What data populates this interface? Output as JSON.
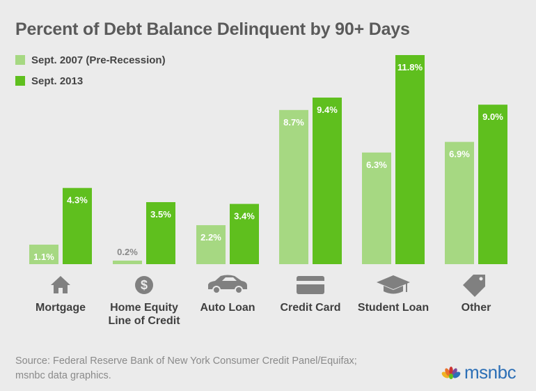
{
  "chart_data": {
    "type": "bar",
    "title": "Percent of Debt Balance Delinquent by 90+ Days",
    "categories": [
      "Mortgage",
      "Home Equity Line of Credit",
      "Auto Loan",
      "Credit Card",
      "Student Loan",
      "Other"
    ],
    "category_lines": [
      [
        "Mortgage"
      ],
      [
        "Home Equity",
        "Line of Credit"
      ],
      [
        "Auto Loan"
      ],
      [
        "Credit Card"
      ],
      [
        "Student Loan"
      ],
      [
        "Other"
      ]
    ],
    "category_icons": [
      "house-icon",
      "dollar-icon",
      "car-icon",
      "credit-card-icon",
      "graduation-cap-icon",
      "tag-icon"
    ],
    "series": [
      {
        "name": "Sept. 2007 (Pre-Recession)",
        "values": [
          1.1,
          0.2,
          2.2,
          8.7,
          6.3,
          6.9
        ],
        "labels": [
          "1.1%",
          "0.2%",
          "2.2%",
          "8.7%",
          "6.3%",
          "6.9%"
        ],
        "color": "#a6d882"
      },
      {
        "name": "Sept. 2013",
        "values": [
          4.3,
          3.5,
          3.4,
          9.4,
          11.8,
          9.0
        ],
        "labels": [
          "4.3%",
          "3.5%",
          "3.4%",
          "9.4%",
          "11.8%",
          "9.0%"
        ],
        "color": "#5fbf1e"
      }
    ],
    "ylim": [
      0,
      11.8
    ],
    "grid": false,
    "legend_position": "top-left"
  },
  "colors": {
    "background": "#ebebeb",
    "icon": "#808080",
    "title": "#5a5a5a",
    "source": "#8a8a8a",
    "logo": "#2c6fb6",
    "pre_recession_label": "#ffffff",
    "small_bar_label": "#888888"
  },
  "source": {
    "line1": "Source: Federal Reserve Bank of New York Consumer Credit Panel/Equifax;",
    "line2": "msnbc data graphics."
  },
  "logo": {
    "text": "msnbc"
  }
}
